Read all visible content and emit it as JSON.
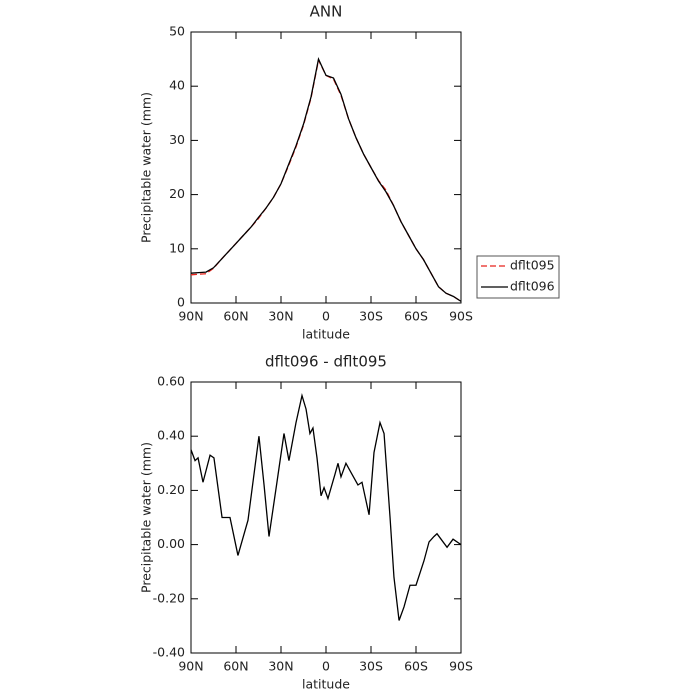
{
  "chart_data": [
    {
      "type": "line",
      "title": "ANN",
      "xlabel": "latitude",
      "ylabel": "Precipitable water (mm)",
      "x": [
        90,
        85,
        80,
        75,
        70,
        65,
        60,
        55,
        50,
        45,
        40,
        35,
        30,
        25,
        20,
        15,
        10,
        5,
        0,
        -5,
        -10,
        -15,
        -20,
        -25,
        -30,
        -35,
        -40,
        -45,
        -50,
        -55,
        -60,
        -65,
        -70,
        -75,
        -80,
        -85,
        -90
      ],
      "series": [
        {
          "name": "dflt095",
          "color": "#e8231c",
          "linestyle": "dashed",
          "values": [
            5.2,
            5.3,
            5.4,
            6.4,
            8,
            9.5,
            11,
            12.5,
            14,
            15.6,
            17.5,
            19.5,
            22,
            25.3,
            28.8,
            32.8,
            37.8,
            44.8,
            42,
            41.3,
            38.3,
            34,
            30.5,
            27.5,
            25,
            22.6,
            20.8,
            18,
            15,
            12.5,
            10,
            8,
            5.5,
            3,
            1.8,
            1.2,
            0.3
          ]
        },
        {
          "name": "dflt096",
          "color": "#000000",
          "linestyle": "solid",
          "values": [
            5.5,
            5.6,
            5.7,
            6.5,
            8,
            9.5,
            11,
            12.5,
            14,
            15.8,
            17.5,
            19.5,
            22,
            25.5,
            29,
            33,
            38,
            45,
            42,
            41.5,
            38.5,
            34,
            30.5,
            27.5,
            25,
            22.5,
            20.5,
            18,
            15,
            12.5,
            10,
            8,
            5.5,
            3,
            1.8,
            1.2,
            0.3
          ]
        }
      ],
      "xlim": [
        90,
        -90
      ],
      "xticks": [
        {
          "value": 90,
          "label": "90N"
        },
        {
          "value": 60,
          "label": "60N"
        },
        {
          "value": 30,
          "label": "30N"
        },
        0,
        {
          "value": -30,
          "label": "30S"
        },
        {
          "value": -60,
          "label": "60S"
        },
        {
          "value": -90,
          "label": "90S"
        }
      ],
      "ylim": [
        0,
        50
      ],
      "yticks": [
        0,
        10,
        20,
        30,
        40,
        50
      ],
      "legend": "right"
    },
    {
      "type": "line",
      "title": "dflt096 - dflt095",
      "xlabel": "latitude",
      "ylabel": "Precipitable water (mm)",
      "x": [
        90,
        87.3,
        85.3,
        82,
        77.3,
        74.7,
        69.3,
        64,
        58.7,
        52,
        44.7,
        41.3,
        38,
        32.7,
        28,
        24.7,
        20,
        16,
        13.3,
        10.7,
        8.7,
        6,
        3.3,
        1.3,
        -1.3,
        -6,
        -8,
        -10,
        -13.3,
        -17.3,
        -21.3,
        -24,
        -28.7,
        -32,
        -36,
        -38.7,
        -42.7,
        -45.3,
        -48.7,
        -52,
        -56,
        -60,
        -65.3,
        -68.7,
        -72,
        -74,
        -76.7,
        -80.7,
        -84.7,
        -90
      ],
      "values": [
        0.35,
        0.31,
        0.32,
        0.23,
        0.33,
        0.32,
        0.1,
        0.1,
        -0.04,
        0.09,
        0.4,
        0.22,
        0.03,
        0.23,
        0.41,
        0.31,
        0.45,
        0.55,
        0.5,
        0.41,
        0.43,
        0.32,
        0.18,
        0.21,
        0.17,
        0.26,
        0.3,
        0.25,
        0.3,
        0.26,
        0.22,
        0.23,
        0.11,
        0.34,
        0.45,
        0.41,
        0.1,
        -0.12,
        -0.28,
        -0.23,
        -0.15,
        -0.15,
        -0.06,
        0.01,
        0.03,
        0.04,
        0.02,
        -0.01,
        0.02,
        0
      ],
      "color": "#000000",
      "linestyle": "solid",
      "xlim": [
        90,
        -90
      ],
      "xticks": [
        {
          "value": 90,
          "label": "90N"
        },
        {
          "value": 60,
          "label": "60N"
        },
        {
          "value": 30,
          "label": "30N"
        },
        0,
        {
          "value": -30,
          "label": "30S"
        },
        {
          "value": -60,
          "label": "60S"
        },
        {
          "value": -90,
          "label": "90S"
        }
      ],
      "ylim": [
        -0.4,
        0.6
      ],
      "yticks": [
        {
          "value": -0.4,
          "label": "-0.40"
        },
        {
          "value": -0.2,
          "label": "-0.20"
        },
        {
          "value": 0,
          "label": "0.00"
        },
        {
          "value": 0.2,
          "label": "0.20"
        },
        {
          "value": 0.4,
          "label": "0.40"
        },
        {
          "value": 0.6,
          "label": "0.60"
        }
      ]
    }
  ]
}
